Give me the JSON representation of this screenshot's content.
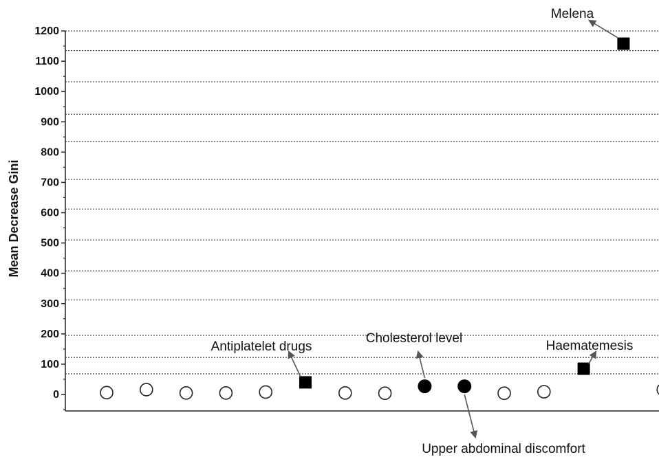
{
  "chart_data": {
    "type": "scatter",
    "title": "",
    "xlabel": "",
    "ylabel": "Mean Decrease Gini",
    "ylim": [
      -50,
      1220
    ],
    "yticks": [
      0,
      100,
      200,
      300,
      400,
      500,
      600,
      700,
      800,
      900,
      1000,
      1100,
      1200
    ],
    "grid_lines_y": [
      68,
      122,
      195,
      312,
      408,
      510,
      612,
      710,
      835,
      925,
      1032,
      1135,
      1200
    ],
    "points": [
      {
        "x": 1,
        "y": 6,
        "marker": "circle-open"
      },
      {
        "x": 2,
        "y": 16,
        "marker": "circle-open"
      },
      {
        "x": 3,
        "y": 5,
        "marker": "circle-open"
      },
      {
        "x": 4,
        "y": 5,
        "marker": "circle-open"
      },
      {
        "x": 5,
        "y": 8,
        "marker": "circle-open"
      },
      {
        "x": 6,
        "y": 40,
        "marker": "square",
        "label": "Antiplatelet drugs"
      },
      {
        "x": 7,
        "y": 5,
        "marker": "circle-open"
      },
      {
        "x": 8,
        "y": 4,
        "marker": "circle-open"
      },
      {
        "x": 9,
        "y": 27,
        "marker": "circle-filled",
        "label": "Cholesterol level"
      },
      {
        "x": 10,
        "y": 27,
        "marker": "circle-filled",
        "label": "Upper abdominal discomfort"
      },
      {
        "x": 11,
        "y": 4,
        "marker": "circle-open"
      },
      {
        "x": 12,
        "y": 9,
        "marker": "circle-open"
      },
      {
        "x": 13,
        "y": 85,
        "marker": "square",
        "label": "Haematemesis"
      },
      {
        "x": 14,
        "y": 1158,
        "marker": "square",
        "label": "Melena"
      },
      {
        "x": 15,
        "y": 16,
        "marker": "circle-open"
      }
    ],
    "grid": true
  },
  "colors": {
    "marker": "#000000",
    "grid": "#444444",
    "arrow": "#555555"
  }
}
